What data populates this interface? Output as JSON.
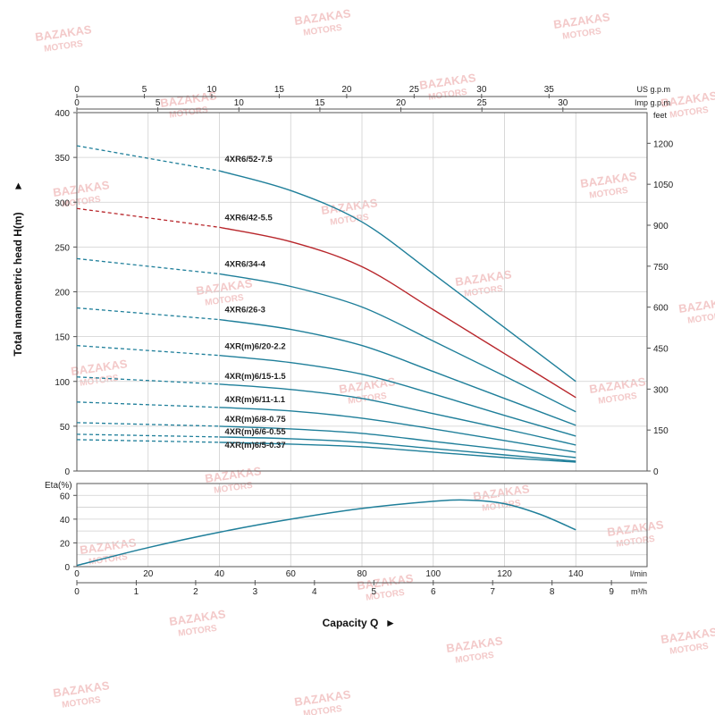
{
  "colors": {
    "curve": "#1f7f9a",
    "highlight": "#b8262b",
    "grid": "#cfcfcf",
    "frame": "#555555",
    "watermark": "#f3c9c9"
  },
  "watermark": {
    "line1": "BAZAKAS",
    "line2": "MOTORS"
  },
  "chart_data": [
    {
      "type": "line",
      "ylabel": "Total manometric head H(m)",
      "ylabel_arrow": "►",
      "ylim": [
        0,
        400
      ],
      "y_ticks": [
        0,
        50,
        100,
        150,
        200,
        250,
        300,
        350,
        400
      ],
      "xlim": [
        0,
        140
      ],
      "right_axis": {
        "unit": "feet",
        "ticks": [
          0,
          150,
          300,
          450,
          600,
          750,
          900,
          1050,
          1200
        ]
      },
      "top_axes": [
        {
          "unit": "US g.p.m",
          "ticks": [
            0,
            5,
            10,
            15,
            20,
            25,
            30,
            35
          ]
        },
        {
          "unit": "Imp g.p.m",
          "ticks": [
            0,
            5,
            10,
            15,
            20,
            25,
            30
          ]
        }
      ],
      "grid": true,
      "x": [
        0,
        40,
        60,
        80,
        100,
        120,
        140
      ],
      "series": [
        {
          "name": "4XR6/52-7.5",
          "values": [
            363,
            335,
            313,
            278,
            220,
            160,
            100
          ],
          "highlight": false
        },
        {
          "name": "4XR6/42-5.5",
          "values": [
            293,
            272,
            256,
            228,
            180,
            131,
            82
          ],
          "highlight": true
        },
        {
          "name": "4XR6/34-4",
          "values": [
            237,
            220,
            206,
            183,
            145,
            106,
            66
          ],
          "highlight": false
        },
        {
          "name": "4XR6/26-3",
          "values": [
            182,
            169,
            158,
            140,
            111,
            81,
            51
          ],
          "highlight": false
        },
        {
          "name": "4XR(m)6/20-2.2",
          "values": [
            140,
            129,
            121,
            108,
            86,
            62,
            39
          ],
          "highlight": false
        },
        {
          "name": "4XR(m)6/15-1.5",
          "values": [
            105,
            97,
            91,
            81,
            64,
            47,
            29
          ],
          "highlight": false
        },
        {
          "name": "4XR(m)6/11-1.1",
          "values": [
            77,
            71,
            67,
            59,
            47,
            34,
            21
          ],
          "highlight": false
        },
        {
          "name": "4XR(m)6/8-0.75",
          "values": [
            54,
            50,
            47,
            42,
            33,
            24,
            15
          ],
          "highlight": false
        },
        {
          "name": "4XR(m)6/6-0.55",
          "values": [
            41,
            38,
            36,
            32,
            25,
            18,
            11
          ],
          "highlight": false
        },
        {
          "name": "4XR(m)6/5-0.37",
          "values": [
            35,
            32,
            30,
            27,
            21,
            15,
            10
          ],
          "highlight": false
        }
      ]
    },
    {
      "type": "line",
      "ylabel": "Eta(%)",
      "ylim": [
        0,
        70
      ],
      "y_ticks": [
        0,
        20,
        40,
        60
      ],
      "xlim": [
        0,
        140
      ],
      "x_unit": "l/min",
      "x_ticks": [
        0,
        20,
        40,
        60,
        80,
        100,
        120,
        140
      ],
      "second_x_axis": {
        "unit": "m³/h",
        "ticks": [
          0,
          1,
          2,
          3,
          4,
          5,
          6,
          7,
          8,
          9
        ]
      },
      "xlabel": "Capacity Q",
      "xlabel_arrow": "►",
      "grid": true,
      "x": [
        0,
        20,
        40,
        60,
        80,
        100,
        110,
        120,
        130,
        140
      ],
      "values": [
        1,
        16,
        29,
        40,
        49,
        55,
        56,
        53,
        44,
        31
      ]
    }
  ]
}
